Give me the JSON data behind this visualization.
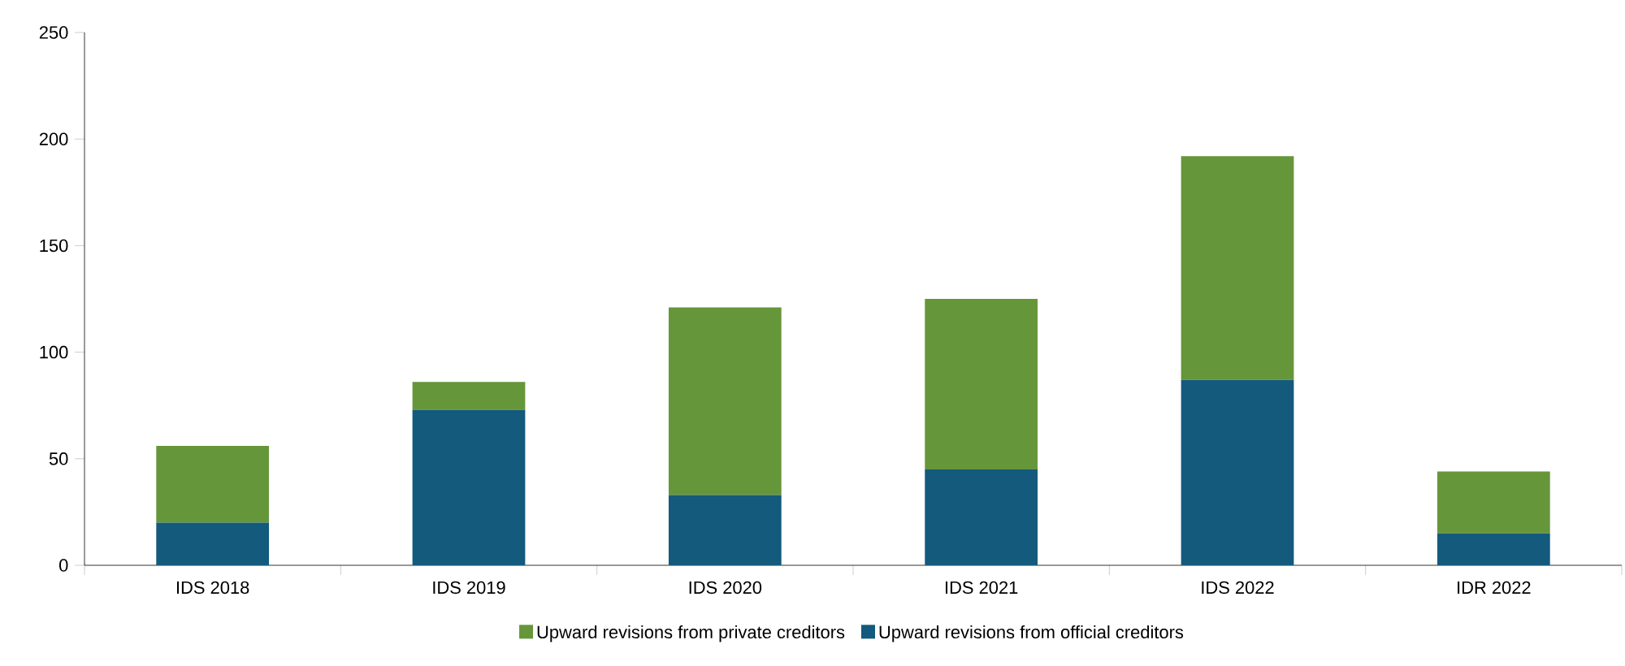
{
  "chart_data": {
    "type": "bar",
    "stacked": true,
    "categories": [
      "IDS 2018",
      "IDS 2019",
      "IDS 2020",
      "IDS 2021",
      "IDS 2022",
      "IDR 2022"
    ],
    "series": [
      {
        "name": "Upward revisions from official creditors",
        "color": "#135a7c",
        "values": [
          20,
          73,
          33,
          45,
          87,
          15
        ]
      },
      {
        "name": "Upward revisions from private creditors",
        "color": "#66963a",
        "values": [
          36,
          13,
          88,
          80,
          105,
          29
        ]
      }
    ],
    "ylim": [
      0,
      250
    ],
    "yticks": [
      0,
      50,
      100,
      150,
      200,
      250
    ],
    "grid": false,
    "legend": "bottom"
  }
}
